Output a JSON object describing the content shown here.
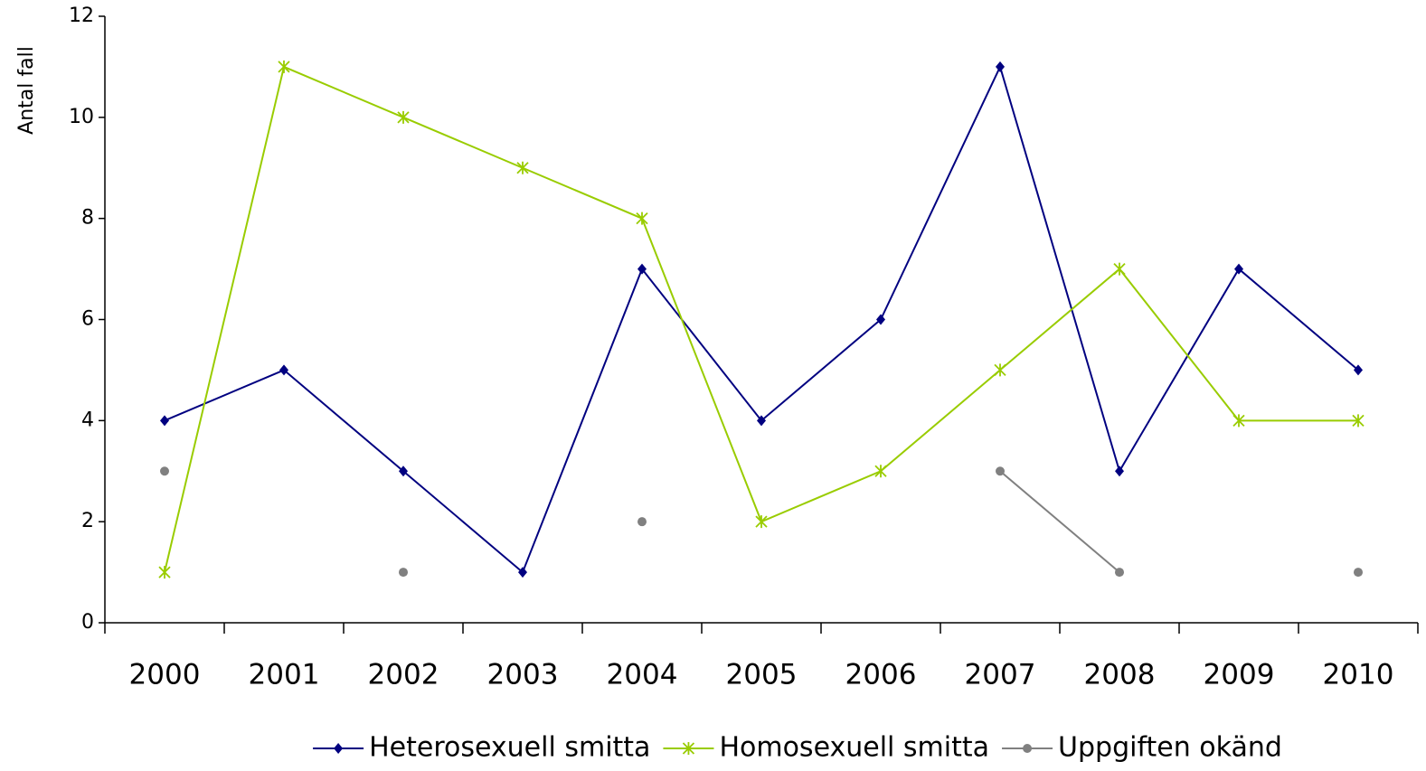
{
  "chart_data": {
    "type": "line",
    "y_label": "Antal fall",
    "categories": [
      "2000",
      "2001",
      "2002",
      "2003",
      "2004",
      "2005",
      "2006",
      "2007",
      "2008",
      "2009",
      "2010"
    ],
    "series": [
      {
        "name": "Heterosexuell smitta",
        "color": "#000080",
        "marker": "diamond",
        "values": [
          4,
          5,
          3,
          1,
          7,
          4,
          6,
          11,
          3,
          7,
          5
        ]
      },
      {
        "name": "Homosexuell smitta",
        "color": "#99cc00",
        "marker": "asterisk",
        "values": [
          1,
          11,
          10,
          9,
          8,
          2,
          3,
          5,
          7,
          4,
          4
        ]
      },
      {
        "name": "Uppgiften okänd",
        "color": "#808080",
        "marker": "circle",
        "values": [
          3,
          null,
          1,
          null,
          2,
          null,
          null,
          3,
          1,
          null,
          1
        ]
      }
    ],
    "ylim": [
      0,
      12
    ],
    "yticks": [
      0,
      2,
      4,
      6,
      8,
      10,
      12
    ],
    "legend": "bottom"
  }
}
